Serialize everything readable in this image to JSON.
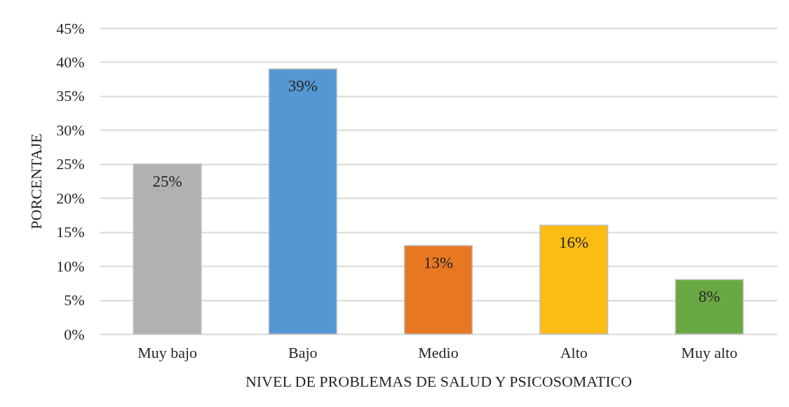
{
  "chart_data": {
    "type": "bar",
    "xlabel": "NIVEL DE PROBLEMAS DE SALUD Y PSICOSOMATICO",
    "ylabel": "PORCENTAJE",
    "categories": [
      "Muy bajo",
      "Bajo",
      "Medio",
      "Alto",
      "Muy alto"
    ],
    "values": [
      25,
      39,
      13,
      16,
      8
    ],
    "value_labels": [
      "25%",
      "39%",
      "13%",
      "16%",
      "8%"
    ],
    "colors": [
      "#b0b1b3",
      "#5497d3",
      "#e87722",
      "#fcbc14",
      "#6aa843"
    ],
    "ylim": [
      0,
      45
    ],
    "yticks": [
      {
        "value": 0,
        "label": "0%"
      },
      {
        "value": 5,
        "label": "5%"
      },
      {
        "value": 10,
        "label": "10%"
      },
      {
        "value": 15,
        "label": "15%"
      },
      {
        "value": 20,
        "label": "20%"
      },
      {
        "value": 25,
        "label": "25%"
      },
      {
        "value": 30,
        "label": "30%"
      },
      {
        "value": 35,
        "label": "35%"
      },
      {
        "value": 40,
        "label": "40%"
      },
      {
        "value": 45,
        "label": "45%"
      }
    ],
    "grid": "y"
  }
}
